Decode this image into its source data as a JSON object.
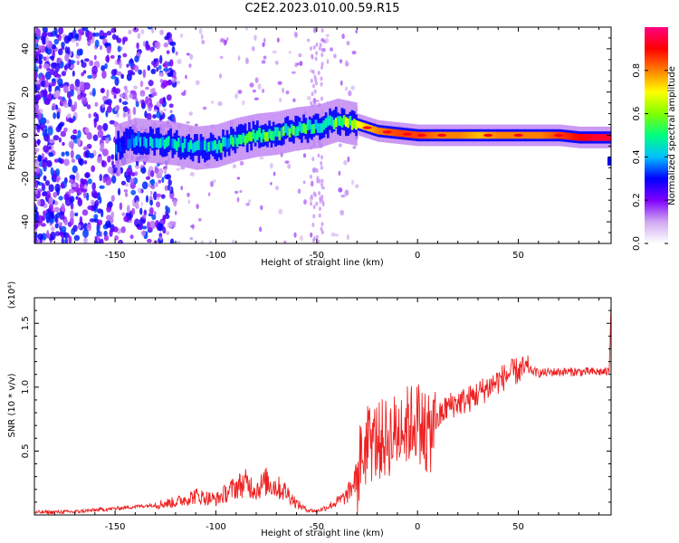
{
  "title": "C2E2.2023.010.00.59.R15",
  "chart_data": [
    {
      "type": "heatmap",
      "xlabel": "Height of straight line (km)",
      "ylabel": "Frequency (Hz)",
      "xlim": [
        -190,
        96
      ],
      "ylim": [
        -50,
        50
      ],
      "xticks": [
        -150,
        -100,
        -50,
        0,
        50
      ],
      "yticks": [
        -40,
        -20,
        0,
        20,
        40
      ],
      "grid": false,
      "colorbar": {
        "label": "Normalized spectral amplitude",
        "ticks": [
          0.0,
          0.2,
          0.4,
          0.6,
          0.8
        ],
        "range": [
          0,
          1
        ],
        "colors": [
          "#ffffff",
          "#d0a8f0",
          "#8000ff",
          "#0000ff",
          "#00c0ff",
          "#00ff80",
          "#80ff00",
          "#ffff00",
          "#ff8000",
          "#ff0000",
          "#ff0080"
        ]
      },
      "ridge": {
        "height_km": [
          -150,
          -140,
          -130,
          -120,
          -110,
          -100,
          -90,
          -80,
          -70,
          -60,
          -50,
          -40,
          -30,
          -20,
          -10,
          0,
          10,
          20,
          30,
          40,
          50,
          60,
          70,
          80,
          90,
          96
        ],
        "center_freq_hz": [
          -5,
          -2,
          -3,
          -4,
          -6,
          -5,
          -2,
          0,
          1,
          3,
          4,
          7,
          5,
          2,
          1,
          0,
          0,
          0,
          0,
          0,
          0,
          0,
          0,
          -1,
          -1,
          -1
        ],
        "peak_amplitude": [
          0.35,
          0.4,
          0.42,
          0.45,
          0.45,
          0.5,
          0.5,
          0.55,
          0.55,
          0.55,
          0.55,
          0.6,
          0.7,
          0.8,
          0.85,
          0.85,
          0.8,
          0.8,
          0.75,
          0.8,
          0.8,
          0.8,
          0.85,
          0.9,
          0.95,
          0.95
        ]
      }
    },
    {
      "type": "line",
      "xlabel": "Height of straight line (km)",
      "ylabel": "SNR (10 * v/v)",
      "y_multiplier": "(x10⁴)",
      "xlim": [
        -190,
        96
      ],
      "ylim": [
        0,
        17000
      ],
      "xticks": [
        -150,
        -100,
        -50,
        0,
        50
      ],
      "yticks": [
        5000,
        10000,
        15000
      ],
      "ytick_labels": [
        "0.5",
        "1.0",
        "1.5"
      ],
      "grid": false,
      "series": [
        {
          "color": "#ee2222",
          "x": [
            -190,
            -170,
            -150,
            -130,
            -120,
            -110,
            -100,
            -90,
            -85,
            -80,
            -75,
            -70,
            -65,
            -60,
            -55,
            -50,
            -45,
            -40,
            -35,
            -30,
            -28,
            -25,
            -20,
            -15,
            -10,
            -5,
            0,
            5,
            10,
            15,
            20,
            25,
            30,
            35,
            40,
            45,
            50,
            55,
            60,
            70,
            80,
            90,
            95,
            96
          ],
          "y": [
            200,
            250,
            500,
            800,
            1000,
            1500,
            1200,
            2200,
            2500,
            2000,
            2600,
            2200,
            1800,
            900,
            400,
            300,
            600,
            1000,
            1500,
            3000,
            4500,
            5500,
            5800,
            6000,
            6500,
            7000,
            7500,
            6000,
            7500,
            8500,
            8800,
            9000,
            9500,
            10000,
            10500,
            11000,
            11300,
            11400,
            11100,
            11200,
            11200,
            11200,
            11200,
            16500
          ]
        }
      ]
    }
  ]
}
